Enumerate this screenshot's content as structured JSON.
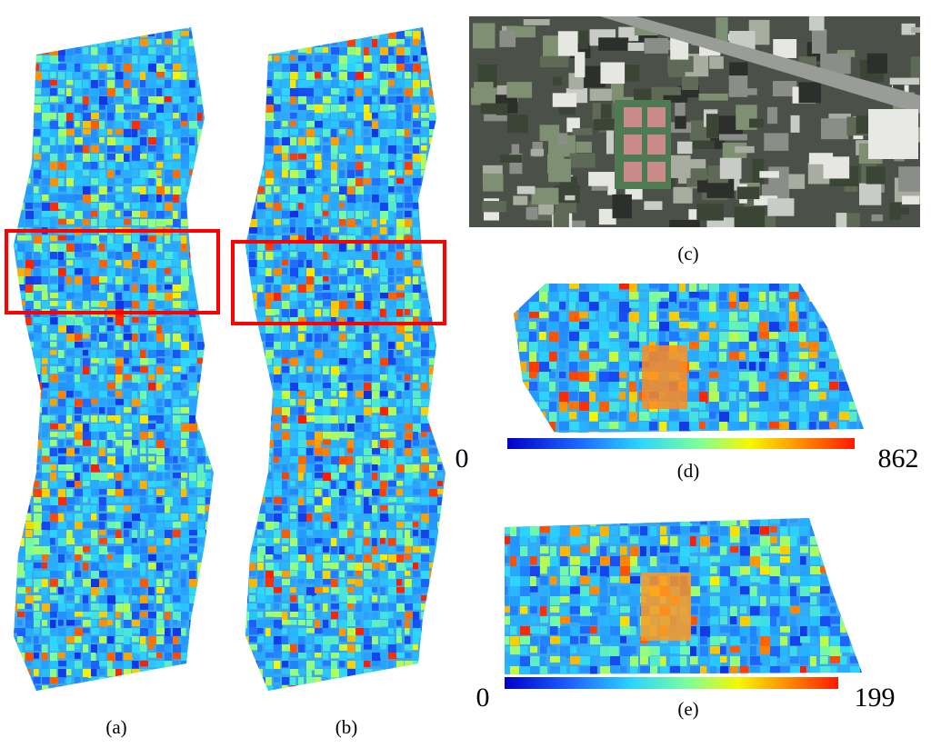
{
  "panels": {
    "a": "(a)",
    "b": "(b)",
    "c": "(c)",
    "d": "(d)",
    "e": "(e)"
  },
  "colorbars": [
    {
      "min": 0,
      "max": 862
    },
    {
      "min": 0,
      "max": 199
    }
  ]
}
